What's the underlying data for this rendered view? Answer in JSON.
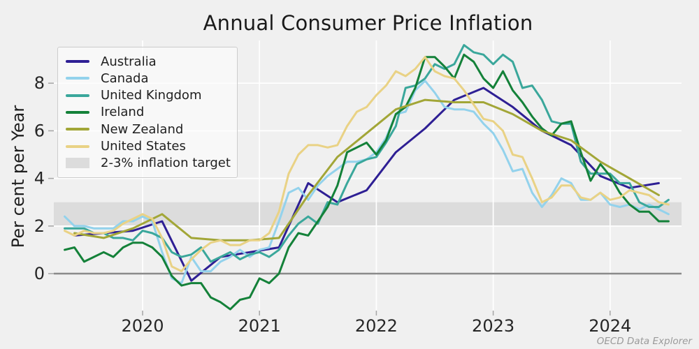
{
  "title": "Annual Consumer Price Inflation",
  "ylabel": "Per cent per Year",
  "attribution": "OECD Data Explorer",
  "colors": {
    "background": "#f0f0f0",
    "gridline": "#ffffff",
    "zero_line": "#8a8a8a",
    "tick": "#a6a6a6",
    "band": "#dcdcdc",
    "text": "#1f1f1f"
  },
  "chart_data": {
    "type": "line",
    "title": "Annual Consumer Price Inflation",
    "xlabel": "",
    "ylabel": "Per cent per Year",
    "x_ticks": [
      {
        "label": "2020",
        "t": 2020
      },
      {
        "label": "2021",
        "t": 2021
      },
      {
        "label": "2022",
        "t": 2022
      },
      {
        "label": "2023",
        "t": 2023
      },
      {
        "label": "2024",
        "t": 2024
      }
    ],
    "y_ticks": [
      {
        "label": "0",
        "v": 0
      },
      {
        "label": "2",
        "v": 2
      },
      {
        "label": "4",
        "v": 4
      },
      {
        "label": "6",
        "v": 6
      },
      {
        "label": "8",
        "v": 8
      }
    ],
    "x_range": [
      2019.24,
      2024.6
    ],
    "y_range": [
      -1.55,
      9.68
    ],
    "grid": true,
    "legend_position": "upper left",
    "zero_line": 0,
    "target_band": {
      "label": "2-3% inflation target",
      "from": 2,
      "to": 3,
      "color": "#dcdcdc"
    },
    "series": [
      {
        "name": "Australia",
        "color": "#2e1f94",
        "frequency": "quarterly",
        "first_period": "2019-Q2",
        "last_period": "2024-Q2",
        "x_start": 2019.4167,
        "x_step": 0.25,
        "values": [
          1.6,
          1.7,
          1.8,
          2.2,
          -0.3,
          0.7,
          0.9,
          1.1,
          3.8,
          3.0,
          3.5,
          5.1,
          6.1,
          7.3,
          7.8,
          7.0,
          6.0,
          5.4,
          4.1,
          3.6,
          3.8
        ]
      },
      {
        "name": "Canada",
        "color": "#93d2ec",
        "frequency": "monthly",
        "first_period": "2019-05",
        "last_period": "2024-07",
        "x_start": 2019.3333,
        "x_step": 0.0833333,
        "values": [
          2.4,
          2.0,
          2.0,
          1.9,
          1.9,
          1.9,
          2.2,
          2.2,
          2.4,
          2.2,
          0.9,
          -0.2,
          -0.4,
          0.7,
          0.1,
          0.1,
          0.5,
          0.7,
          1.0,
          0.7,
          1.0,
          1.1,
          2.2,
          3.4,
          3.6,
          3.1,
          3.7,
          4.1,
          4.4,
          4.7,
          4.7,
          4.8,
          5.1,
          5.7,
          6.7,
          6.8,
          7.7,
          8.1,
          7.6,
          7.0,
          6.9,
          6.9,
          6.8,
          6.3,
          5.9,
          5.2,
          4.3,
          4.4,
          3.4,
          2.8,
          3.3,
          4.0,
          3.8,
          3.1,
          3.1,
          3.4,
          2.9,
          2.8,
          2.9,
          2.7,
          2.9,
          2.7,
          2.5
        ]
      },
      {
        "name": "United Kingdom",
        "color": "#3aa79b",
        "frequency": "monthly",
        "first_period": "2019-05",
        "last_period": "2024-07",
        "x_start": 2019.3333,
        "x_step": 0.0833333,
        "values": [
          1.9,
          1.9,
          1.9,
          1.7,
          1.7,
          1.5,
          1.5,
          1.4,
          1.8,
          1.7,
          1.5,
          0.9,
          0.7,
          0.8,
          1.1,
          0.5,
          0.7,
          0.9,
          0.6,
          0.8,
          0.9,
          0.7,
          1.0,
          1.6,
          2.1,
          2.4,
          2.1,
          3.0,
          2.9,
          3.8,
          4.6,
          4.8,
          4.9,
          5.5,
          6.2,
          7.8,
          7.9,
          8.2,
          8.8,
          8.6,
          8.8,
          9.6,
          9.3,
          9.2,
          8.8,
          9.2,
          8.9,
          7.8,
          7.9,
          7.3,
          6.4,
          6.3,
          6.3,
          4.7,
          4.2,
          4.2,
          4.2,
          3.8,
          3.8,
          3.0,
          2.8,
          2.8,
          3.1
        ]
      },
      {
        "name": "Ireland",
        "color": "#148139",
        "frequency": "monthly",
        "first_period": "2019-05",
        "last_period": "2024-07",
        "x_start": 2019.3333,
        "x_step": 0.0833333,
        "values": [
          1.0,
          1.1,
          0.5,
          0.7,
          0.9,
          0.7,
          1.1,
          1.3,
          1.3,
          1.1,
          0.7,
          -0.1,
          -0.5,
          -0.4,
          -0.4,
          -1.0,
          -1.2,
          -1.5,
          -1.1,
          -1.0,
          -0.2,
          -0.4,
          0.0,
          1.1,
          1.7,
          1.6,
          2.2,
          2.8,
          3.7,
          5.1,
          5.3,
          5.5,
          5.0,
          5.6,
          6.7,
          7.0,
          7.8,
          9.1,
          9.1,
          8.7,
          8.2,
          9.2,
          8.9,
          8.2,
          7.8,
          8.5,
          7.7,
          7.2,
          6.6,
          6.1,
          5.8,
          6.3,
          6.4,
          5.1,
          3.9,
          4.6,
          4.1,
          3.4,
          2.9,
          2.6,
          2.6,
          2.2,
          2.2
        ]
      },
      {
        "name": "New Zealand",
        "color": "#a2a637",
        "frequency": "quarterly",
        "first_period": "2019-Q2",
        "last_period": "2024-Q2",
        "x_start": 2019.4167,
        "x_step": 0.25,
        "values": [
          1.7,
          1.5,
          1.9,
          2.5,
          1.5,
          1.4,
          1.4,
          1.5,
          3.3,
          4.9,
          5.9,
          6.9,
          7.3,
          7.2,
          7.2,
          6.7,
          6.0,
          5.6,
          4.7,
          4.0,
          3.3
        ]
      },
      {
        "name": "United States",
        "color": "#e9d285",
        "frequency": "monthly",
        "first_period": "2019-05",
        "last_period": "2024-07",
        "x_start": 2019.3333,
        "x_step": 0.0833333,
        "values": [
          1.8,
          1.6,
          1.8,
          1.7,
          1.7,
          1.8,
          2.1,
          2.3,
          2.5,
          2.3,
          1.5,
          0.3,
          0.1,
          0.6,
          1.0,
          1.3,
          1.4,
          1.2,
          1.2,
          1.4,
          1.4,
          1.7,
          2.6,
          4.2,
          5.0,
          5.4,
          5.4,
          5.3,
          5.4,
          6.2,
          6.8,
          7.0,
          7.5,
          7.9,
          8.5,
          8.3,
          8.6,
          9.1,
          8.5,
          8.3,
          8.2,
          7.7,
          7.1,
          6.5,
          6.4,
          6.0,
          5.0,
          4.9,
          4.0,
          3.0,
          3.2,
          3.7,
          3.7,
          3.2,
          3.1,
          3.4,
          3.1,
          3.2,
          3.5,
          3.4,
          3.3,
          3.0,
          2.9
        ]
      }
    ]
  }
}
